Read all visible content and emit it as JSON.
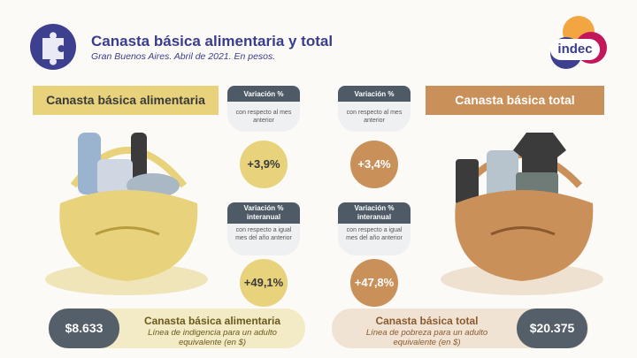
{
  "header": {
    "title": "Canasta básica alimentaria y total",
    "subtitle": "Gran Buenos Aires. Abril de 2021. En pesos.",
    "logo_text": "indec",
    "icon": "puzzle-icon"
  },
  "left": {
    "band_label": "Canasta básica alimentaria",
    "monthly": {
      "title": "Variación %",
      "desc": "con respecto al mes anterior",
      "value": "+3,9%"
    },
    "yearly": {
      "title": "Variación % interanual",
      "desc": "con respecto a igual mes del año anterior",
      "value": "+49,1%"
    },
    "amount": "$8.633",
    "bottom_title": "Canasta básica alimentaria",
    "bottom_desc": "Línea de indigencia para un adulto equivalente (en $)"
  },
  "right": {
    "band_label": "Canasta básica total",
    "monthly": {
      "title": "Variación %",
      "desc": "con respecto al mes anterior",
      "value": "+3,4%"
    },
    "yearly": {
      "title": "Variación % interanual",
      "desc": "con respecto a igual mes del año anterior",
      "value": "+47,8%"
    },
    "amount": "$20.375",
    "bottom_title": "Canasta básica total",
    "bottom_desc": "Línea de pobreza para un adulto equivalente (en $)"
  },
  "colors": {
    "navy": "#3a3d8c",
    "yellow": "#e8d27c",
    "orange": "#c9905a",
    "slate": "#4e5b67"
  }
}
